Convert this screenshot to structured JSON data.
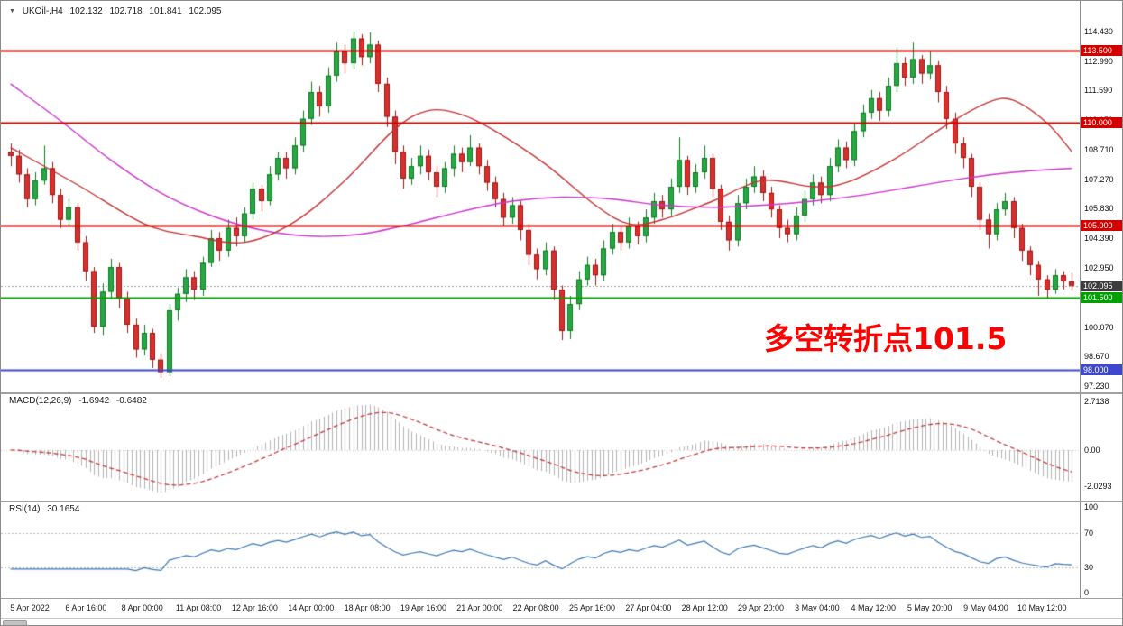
{
  "header": {
    "instrument": "UKOil-,H4",
    "open": "102.132",
    "high": "102.718",
    "low": "101.841",
    "close": "102.095"
  },
  "chart_data": {
    "type": "candlestick",
    "symbol": "UKOil-",
    "timeframe": "H4",
    "y_ticks": [
      "114.430",
      "112.990",
      "111.590",
      "110.150",
      "108.710",
      "107.270",
      "105.830",
      "104.390",
      "102.950",
      "101.510",
      "100.070",
      "98.670",
      "97.230"
    ],
    "x_labels": [
      "5 Apr 2022",
      "6 Apr 16:00",
      "8 Apr 00:00",
      "11 Apr 08:00",
      "12 Apr 16:00",
      "14 Apr 00:00",
      "18 Apr 08:00",
      "19 Apr 16:00",
      "21 Apr 00:00",
      "22 Apr 08:00",
      "25 Apr 16:00",
      "27 Apr 04:00",
      "28 Apr 12:00",
      "29 Apr 20:00",
      "3 May 04:00",
      "4 May 12:00",
      "5 May 20:00",
      "9 May 04:00",
      "10 May 12:00"
    ],
    "candles": [
      [
        108.6,
        109.0,
        107.9,
        108.4
      ],
      [
        108.4,
        108.7,
        107.1,
        107.5
      ],
      [
        107.5,
        107.8,
        105.9,
        106.3
      ],
      [
        106.3,
        107.6,
        106.0,
        107.2
      ],
      [
        107.2,
        108.9,
        107.0,
        107.8
      ],
      [
        107.8,
        108.1,
        106.1,
        106.5
      ],
      [
        106.5,
        106.8,
        104.9,
        105.3
      ],
      [
        105.3,
        106.3,
        105.0,
        105.9
      ],
      [
        105.9,
        106.1,
        103.8,
        104.2
      ],
      [
        104.2,
        104.5,
        102.3,
        102.8
      ],
      [
        102.8,
        103.0,
        99.8,
        100.1
      ],
      [
        100.1,
        102.2,
        99.7,
        101.8
      ],
      [
        101.8,
        103.4,
        101.5,
        103.0
      ],
      [
        103.0,
        103.2,
        101.0,
        101.5
      ],
      [
        101.5,
        101.8,
        99.8,
        100.2
      ],
      [
        100.2,
        100.5,
        98.6,
        99.0
      ],
      [
        99.0,
        100.2,
        98.7,
        99.8
      ],
      [
        99.8,
        100.0,
        98.1,
        98.5
      ],
      [
        98.5,
        98.8,
        97.62,
        97.9
      ],
      [
        97.9,
        101.2,
        97.7,
        100.9
      ],
      [
        100.9,
        102.0,
        100.4,
        101.7
      ],
      [
        101.7,
        102.9,
        101.3,
        102.5
      ],
      [
        102.5,
        102.8,
        101.4,
        101.9
      ],
      [
        101.9,
        103.5,
        101.6,
        103.2
      ],
      [
        103.2,
        104.8,
        103.0,
        104.4
      ],
      [
        104.4,
        104.7,
        103.3,
        103.8
      ],
      [
        103.8,
        105.3,
        103.5,
        104.9
      ],
      [
        104.9,
        105.4,
        104.0,
        104.5
      ],
      [
        104.5,
        105.9,
        104.2,
        105.6
      ],
      [
        105.6,
        107.1,
        105.3,
        106.8
      ],
      [
        106.8,
        107.0,
        105.7,
        106.2
      ],
      [
        106.2,
        107.9,
        106.0,
        107.5
      ],
      [
        107.5,
        108.6,
        107.2,
        108.3
      ],
      [
        108.3,
        108.6,
        107.3,
        107.8
      ],
      [
        107.8,
        109.3,
        107.5,
        108.9
      ],
      [
        108.9,
        110.6,
        108.6,
        110.2
      ],
      [
        110.2,
        112.0,
        109.9,
        111.5
      ],
      [
        111.5,
        111.8,
        110.3,
        110.8
      ],
      [
        110.8,
        112.7,
        110.5,
        112.3
      ],
      [
        112.3,
        113.9,
        112.0,
        113.5
      ],
      [
        113.5,
        113.8,
        112.4,
        112.9
      ],
      [
        112.9,
        114.43,
        112.6,
        114.1
      ],
      [
        114.1,
        114.3,
        112.8,
        113.2
      ],
      [
        113.2,
        114.4,
        112.9,
        113.8
      ],
      [
        113.8,
        114.0,
        111.5,
        111.9
      ],
      [
        111.9,
        112.2,
        109.8,
        110.3
      ],
      [
        110.3,
        110.6,
        108.0,
        108.6
      ],
      [
        108.6,
        108.9,
        106.8,
        107.3
      ],
      [
        107.3,
        108.3,
        107.0,
        107.9
      ],
      [
        107.9,
        108.9,
        107.5,
        108.4
      ],
      [
        108.4,
        108.7,
        107.2,
        107.6
      ],
      [
        107.6,
        107.9,
        106.4,
        106.9
      ],
      [
        106.9,
        108.1,
        106.6,
        107.8
      ],
      [
        107.8,
        108.9,
        107.4,
        108.5
      ],
      [
        108.5,
        108.8,
        107.6,
        108.1
      ],
      [
        108.1,
        109.4,
        107.9,
        108.8
      ],
      [
        108.8,
        109.0,
        107.5,
        107.9
      ],
      [
        107.9,
        108.2,
        106.7,
        107.1
      ],
      [
        107.1,
        107.4,
        105.9,
        106.3
      ],
      [
        106.3,
        106.6,
        105.0,
        105.4
      ],
      [
        105.4,
        106.4,
        105.1,
        106.0
      ],
      [
        106.0,
        106.2,
        104.3,
        104.8
      ],
      [
        104.8,
        105.1,
        103.1,
        103.6
      ],
      [
        103.6,
        103.9,
        102.4,
        102.9
      ],
      [
        102.9,
        104.2,
        102.6,
        103.8
      ],
      [
        103.8,
        104.0,
        101.4,
        101.9
      ],
      [
        101.9,
        102.1,
        99.45,
        99.9
      ],
      [
        99.9,
        101.6,
        99.5,
        101.2
      ],
      [
        101.2,
        102.8,
        100.9,
        102.4
      ],
      [
        102.4,
        103.5,
        102.1,
        103.1
      ],
      [
        103.1,
        103.4,
        102.1,
        102.6
      ],
      [
        102.6,
        104.3,
        102.3,
        103.9
      ],
      [
        103.9,
        105.1,
        103.6,
        104.7
      ],
      [
        104.7,
        105.0,
        103.8,
        104.2
      ],
      [
        104.2,
        105.4,
        103.9,
        105.0
      ],
      [
        105.0,
        105.2,
        104.1,
        104.5
      ],
      [
        104.5,
        105.8,
        104.2,
        105.4
      ],
      [
        105.4,
        106.6,
        105.1,
        106.2
      ],
      [
        106.2,
        106.5,
        105.4,
        105.8
      ],
      [
        105.8,
        107.3,
        105.5,
        106.9
      ],
      [
        106.9,
        109.3,
        106.6,
        108.2
      ],
      [
        108.2,
        108.4,
        106.5,
        106.9
      ],
      [
        106.9,
        108.0,
        106.6,
        107.6
      ],
      [
        107.6,
        108.9,
        107.3,
        108.3
      ],
      [
        108.3,
        108.5,
        106.4,
        106.8
      ],
      [
        106.8,
        107.0,
        104.8,
        105.2
      ],
      [
        105.2,
        105.5,
        103.8,
        104.3
      ],
      [
        104.3,
        106.5,
        104.0,
        106.1
      ],
      [
        106.1,
        107.3,
        105.8,
        106.9
      ],
      [
        106.9,
        107.9,
        106.6,
        107.4
      ],
      [
        107.4,
        107.7,
        106.2,
        106.6
      ],
      [
        106.6,
        106.9,
        105.4,
        105.8
      ],
      [
        105.8,
        106.0,
        104.4,
        104.9
      ],
      [
        104.9,
        105.3,
        104.2,
        104.6
      ],
      [
        104.6,
        105.9,
        104.3,
        105.5
      ],
      [
        105.5,
        106.7,
        105.2,
        106.3
      ],
      [
        106.3,
        107.5,
        106.0,
        107.1
      ],
      [
        107.1,
        107.4,
        106.1,
        106.5
      ],
      [
        106.5,
        108.3,
        106.2,
        107.9
      ],
      [
        107.9,
        109.2,
        107.6,
        108.8
      ],
      [
        108.8,
        109.1,
        107.8,
        108.2
      ],
      [
        108.2,
        110.0,
        107.9,
        109.6
      ],
      [
        109.6,
        110.9,
        109.3,
        110.5
      ],
      [
        110.5,
        111.6,
        110.2,
        111.2
      ],
      [
        111.2,
        111.5,
        110.1,
        110.6
      ],
      [
        110.6,
        112.2,
        110.3,
        111.8
      ],
      [
        111.8,
        113.7,
        111.5,
        112.9
      ],
      [
        112.9,
        113.2,
        111.8,
        112.2
      ],
      [
        112.2,
        113.9,
        111.9,
        113.1
      ],
      [
        113.1,
        113.3,
        111.9,
        112.4
      ],
      [
        112.4,
        113.5,
        112.1,
        112.8
      ],
      [
        112.8,
        113.0,
        111.0,
        111.5
      ],
      [
        111.5,
        111.8,
        109.7,
        110.2
      ],
      [
        110.2,
        110.5,
        108.5,
        109.0
      ],
      [
        109.0,
        109.3,
        107.8,
        108.3
      ],
      [
        108.3,
        108.5,
        106.4,
        106.9
      ],
      [
        106.9,
        107.1,
        104.8,
        105.3
      ],
      [
        105.3,
        105.6,
        103.9,
        104.6
      ],
      [
        104.6,
        106.1,
        104.3,
        105.8
      ],
      [
        105.8,
        106.6,
        105.5,
        106.2
      ],
      [
        106.2,
        106.4,
        104.4,
        104.9
      ],
      [
        104.9,
        105.1,
        103.3,
        103.8
      ],
      [
        103.8,
        104.0,
        102.6,
        103.1
      ],
      [
        103.1,
        103.3,
        101.6,
        102.4
      ],
      [
        102.4,
        102.6,
        101.5,
        101.9
      ],
      [
        101.9,
        102.9,
        101.7,
        102.6
      ],
      [
        102.6,
        102.8,
        101.9,
        102.3
      ],
      [
        102.3,
        102.718,
        101.841,
        102.095
      ]
    ],
    "up_color": "#28a745",
    "down_color": "#d9302c",
    "horizontal_levels": [
      {
        "price": 113.5,
        "label": "113.500",
        "color": "#d40000",
        "width": 2
      },
      {
        "price": 110.0,
        "label": "110.000",
        "color": "#d40000",
        "width": 2
      },
      {
        "price": 105.0,
        "label": "105.000",
        "color": "#d40000",
        "width": 2
      },
      {
        "price": 101.5,
        "label": "101.500",
        "color": "#00a000",
        "width": 2
      },
      {
        "price": 98.0,
        "label": "98.000",
        "color": "#3f48cc",
        "width": 2
      }
    ],
    "current_price": {
      "value": 102.095,
      "label": "102.095",
      "badge_color": "#3c3c3c"
    },
    "moving_averages": [
      {
        "name": "ma-fast",
        "color": "#c23232",
        "points": [
          [
            0,
            108.8
          ],
          [
            8,
            107.0
          ],
          [
            16,
            105.1
          ],
          [
            22,
            104.5
          ],
          [
            28,
            104.2
          ],
          [
            34,
            105.2
          ],
          [
            40,
            107.2
          ],
          [
            46,
            109.7
          ],
          [
            50,
            110.6
          ],
          [
            54,
            110.4
          ],
          [
            58,
            109.6
          ],
          [
            64,
            108.0
          ],
          [
            70,
            106.0
          ],
          [
            74,
            105.1
          ],
          [
            78,
            105.3
          ],
          [
            84,
            106.2
          ],
          [
            90,
            107.2
          ],
          [
            96,
            106.9
          ],
          [
            100,
            107.1
          ],
          [
            106,
            108.3
          ],
          [
            112,
            109.9
          ],
          [
            117,
            111.0
          ],
          [
            120,
            111.1
          ],
          [
            124,
            110.0
          ],
          [
            127,
            108.6
          ]
        ]
      },
      {
        "name": "ma-slow",
        "color": "#cc33cc",
        "points": [
          [
            0,
            111.9
          ],
          [
            6,
            110.1
          ],
          [
            12,
            108.2
          ],
          [
            18,
            106.6
          ],
          [
            24,
            105.5
          ],
          [
            30,
            104.8
          ],
          [
            36,
            104.5
          ],
          [
            42,
            104.6
          ],
          [
            48,
            105.1
          ],
          [
            54,
            105.7
          ],
          [
            60,
            106.2
          ],
          [
            66,
            106.4
          ],
          [
            72,
            106.3
          ],
          [
            78,
            106.0
          ],
          [
            84,
            105.9
          ],
          [
            90,
            106.0
          ],
          [
            96,
            106.2
          ],
          [
            102,
            106.5
          ],
          [
            108,
            106.9
          ],
          [
            114,
            107.3
          ],
          [
            120,
            107.6
          ],
          [
            127,
            107.8
          ]
        ]
      }
    ],
    "indicators": {
      "macd": {
        "label": "MACD(12,26,9)",
        "value_main": "-1.6942",
        "value_signal": "-0.6482",
        "fast": 12,
        "slow": 26,
        "smoothing": 9,
        "axis_ticks": [
          "2.7138",
          "0.00",
          "-2.0293"
        ],
        "histogram_color": "#b2b2b2",
        "signal_color": "#c43c3c"
      },
      "rsi": {
        "label": "RSI(14)",
        "value": "30.1654",
        "period": 14,
        "axis_ticks": [
          "100",
          "70",
          "30",
          "0"
        ],
        "levels": [
          70,
          30
        ],
        "line_color": "#3c78b4"
      }
    },
    "annotation": {
      "text": "多空转折点101.5",
      "color": "#ff0000"
    }
  }
}
